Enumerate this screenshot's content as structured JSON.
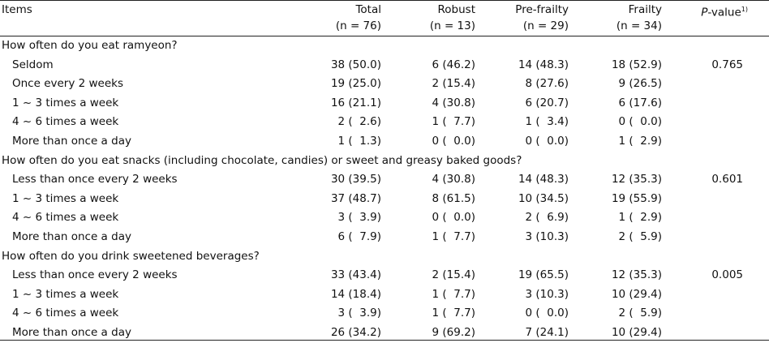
{
  "header": {
    "items": "Items",
    "total": "Total",
    "total_n": "(n = 76)",
    "robust": "Robust",
    "robust_n": "(n = 13)",
    "prefrailty": "Pre-frailty",
    "prefrailty_n": "(n = 29)",
    "frailty": "Frailty",
    "frailty_n": "(n = 34)",
    "pvalue_p": "P",
    "pvalue_rest": "-value",
    "pvalue_sup": "1)"
  },
  "rows": [
    {
      "label": "How often do you eat ramyeon?",
      "section": true,
      "total": "",
      "robust": "",
      "prefrailty": "",
      "frailty": "",
      "p": ""
    },
    {
      "label": "Seldom",
      "total": "38 (50.0)",
      "robust": "6 (46.2)",
      "prefrailty": "14 (48.3)",
      "frailty": "18 (52.9)",
      "p": "0.765"
    },
    {
      "label": "Once every 2 weeks",
      "total": "19 (25.0)",
      "robust": "2 (15.4)",
      "prefrailty": "8 (27.6)",
      "frailty": "9 (26.5)",
      "p": ""
    },
    {
      "label": "1 ~ 3 times a week",
      "total": "16 (21.1)",
      "robust": "4 (30.8)",
      "prefrailty": "6 (20.7)",
      "frailty": "6 (17.6)",
      "p": ""
    },
    {
      "label": "4 ~ 6 times a week",
      "total": "2 (  2.6)",
      "robust": "1 (  7.7)",
      "prefrailty": "1 (  3.4)",
      "frailty": "0 (  0.0)",
      "p": ""
    },
    {
      "label": "More than once a day",
      "total": "1 (  1.3)",
      "robust": "0 (  0.0)",
      "prefrailty": "0 (  0.0)",
      "frailty": "1 (  2.9)",
      "p": ""
    },
    {
      "label": "How often do you eat snacks (including chocolate, candies) or sweet and greasy baked goods?",
      "section": true,
      "total": "",
      "robust": "",
      "prefrailty": "",
      "frailty": "",
      "p": ""
    },
    {
      "label": "Less than once every 2 weeks",
      "total": "30 (39.5)",
      "robust": "4 (30.8)",
      "prefrailty": "14 (48.3)",
      "frailty": "12 (35.3)",
      "p": "0.601"
    },
    {
      "label": "1 ~ 3 times a week",
      "total": "37 (48.7)",
      "robust": "8 (61.5)",
      "prefrailty": "10 (34.5)",
      "frailty": "19 (55.9)",
      "p": ""
    },
    {
      "label": "4 ~ 6 times a week",
      "total": "3 (  3.9)",
      "robust": "0 (  0.0)",
      "prefrailty": "2 (  6.9)",
      "frailty": "1 (  2.9)",
      "p": ""
    },
    {
      "label": "More than once a day",
      "total": "6 (  7.9)",
      "robust": "1 (  7.7)",
      "prefrailty": "3 (10.3)",
      "frailty": "2 (  5.9)",
      "p": ""
    },
    {
      "label": "How often do you drink sweetened beverages?",
      "section": true,
      "total": "",
      "robust": "",
      "prefrailty": "",
      "frailty": "",
      "p": ""
    },
    {
      "label": "Less than once every 2 weeks",
      "total": "33 (43.4)",
      "robust": "2 (15.4)",
      "prefrailty": "19 (65.5)",
      "frailty": "12 (35.3)",
      "p": "0.005"
    },
    {
      "label": "1 ~ 3 times a week",
      "total": "14 (18.4)",
      "robust": "1 (  7.7)",
      "prefrailty": "3 (10.3)",
      "frailty": "10 (29.4)",
      "p": ""
    },
    {
      "label": "4 ~ 6 times a week",
      "total": "3 (  3.9)",
      "robust": "1 (  7.7)",
      "prefrailty": "0 (  0.0)",
      "frailty": "2 (  5.9)",
      "p": ""
    },
    {
      "label": "More than once a day",
      "total": "26 (34.2)",
      "robust": "9 (69.2)",
      "prefrailty": "7 (24.1)",
      "frailty": "10 (29.4)",
      "p": ""
    }
  ]
}
